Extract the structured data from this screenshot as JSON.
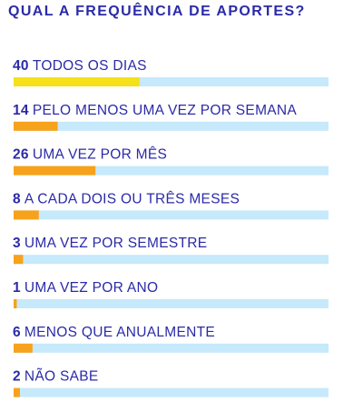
{
  "title": "QUAL A FREQUÊNCIA DE APORTES?",
  "colors": {
    "text": "#2b2aa8",
    "track": "#c6e9fb",
    "highlight": "#f5e11a",
    "bar": "#f7a21b"
  },
  "chart_data": {
    "type": "bar",
    "orientation": "horizontal",
    "title": "QUAL A FREQUÊNCIA DE APORTES?",
    "categories": [
      "TODOS OS DIAS",
      "PELO MENOS UMA VEZ POR SEMANA",
      "UMA VEZ POR MÊS",
      "A CADA DOIS OU TRÊS MESES",
      "UMA VEZ POR SEMESTRE",
      "UMA VEZ POR ANO",
      "MENOS QUE ANUALMENTE",
      "NÃO SABE"
    ],
    "values": [
      40,
      14,
      26,
      8,
      3,
      1,
      6,
      2
    ],
    "xlim": [
      0,
      100
    ],
    "grid": false,
    "legend": "none"
  }
}
